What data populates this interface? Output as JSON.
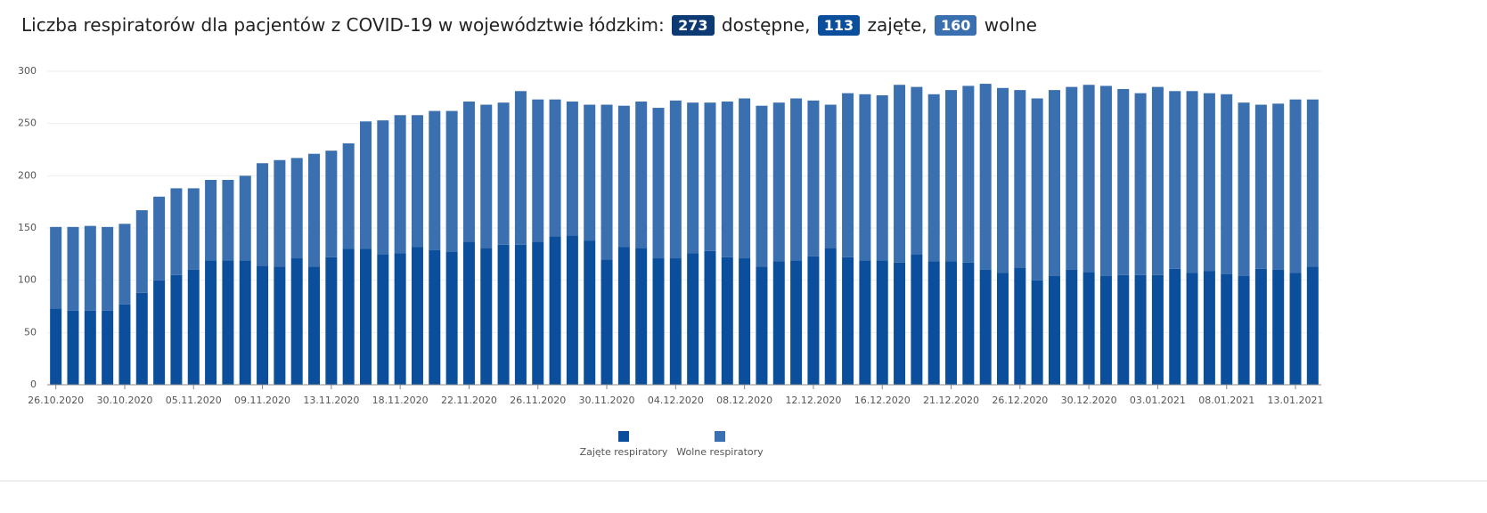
{
  "chart_data": {
    "type": "stacked_bar",
    "title": "Liczba respiratorów dla pacjentów z COVID-19 w województwie łódzkim:",
    "stats": [
      {
        "value": 273,
        "label": "dostępne,",
        "color": "#0d3a73"
      },
      {
        "value": 113,
        "label": "zajęte,",
        "color": "#0b4f9c"
      },
      {
        "value": 160,
        "label": "wolne",
        "color": "#3a6fb0"
      }
    ],
    "categories": [
      "26.10.2020",
      null,
      null,
      null,
      "30.10.2020",
      null,
      null,
      null,
      "05.11.2020",
      null,
      null,
      null,
      "09.11.2020",
      null,
      null,
      null,
      "13.11.2020",
      null,
      null,
      null,
      "18.11.2020",
      null,
      null,
      null,
      "22.11.2020",
      null,
      null,
      null,
      "26.11.2020",
      null,
      null,
      null,
      "30.11.2020",
      null,
      null,
      null,
      "04.12.2020",
      null,
      null,
      null,
      "08.12.2020",
      null,
      null,
      null,
      "12.12.2020",
      null,
      null,
      null,
      "16.12.2020",
      null,
      null,
      null,
      "21.12.2020",
      null,
      null,
      null,
      "26.12.2020",
      null,
      null,
      null,
      "30.12.2020",
      null,
      null,
      null,
      "03.01.2021",
      null,
      null,
      null,
      "08.01.2021",
      null,
      null,
      null,
      "13.01.2021",
      null
    ],
    "series": [
      {
        "name": "Zajęte respiratory",
        "color": "#0b4f9c",
        "values": [
          73,
          71,
          71,
          71,
          77,
          88,
          100,
          105,
          110,
          119,
          119,
          119,
          114,
          113,
          121,
          113,
          122,
          130,
          130,
          125,
          126,
          132,
          129,
          127,
          137,
          131,
          134,
          134,
          137,
          142,
          143,
          138,
          120,
          132,
          131,
          121,
          121,
          126,
          128,
          122,
          121,
          113,
          118,
          119,
          123,
          131,
          122,
          119,
          119,
          117,
          125,
          118,
          118,
          117,
          110,
          107,
          112,
          100,
          104,
          110,
          108,
          104,
          105,
          105,
          105,
          111,
          107,
          109,
          106,
          104,
          111,
          110,
          107,
          113
        ]
      },
      {
        "name": "Wolne respiratory",
        "color": "#3a6fb0",
        "values": [
          78,
          80,
          81,
          80,
          77,
          79,
          80,
          83,
          78,
          77,
          77,
          81,
          98,
          102,
          96,
          108,
          102,
          101,
          122,
          128,
          132,
          126,
          133,
          135,
          134,
          137,
          136,
          147,
          136,
          131,
          128,
          130,
          148,
          135,
          140,
          144,
          151,
          144,
          142,
          149,
          153,
          154,
          152,
          155,
          149,
          137,
          157,
          159,
          158,
          170,
          160,
          160,
          164,
          169,
          178,
          177,
          170,
          174,
          178,
          175,
          179,
          182,
          178,
          174,
          180,
          170,
          174,
          170,
          172,
          166,
          157,
          159,
          166,
          160
        ]
      }
    ],
    "ylim": [
      0,
      300
    ],
    "yticks": [
      0,
      50,
      100,
      150,
      200,
      250,
      300
    ],
    "grid": true
  }
}
